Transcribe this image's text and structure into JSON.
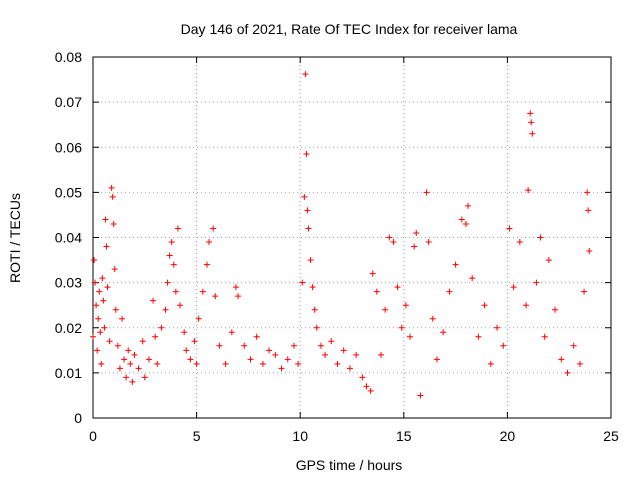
{
  "chart_data": {
    "type": "scatter",
    "title": "Day 146 of 2021, Rate Of TEC Index for receiver lama",
    "xlabel": "GPS time / hours",
    "ylabel": "ROTI / TECUs",
    "xlim": [
      0,
      25
    ],
    "ylim": [
      0,
      0.08
    ],
    "x_ticks": [
      0,
      5,
      10,
      15,
      20,
      25
    ],
    "y_ticks": [
      0,
      0.01,
      0.02,
      0.03,
      0.04,
      0.05,
      0.06,
      0.07,
      0.08
    ],
    "x_tick_labels": [
      "0",
      "5",
      "10",
      "15",
      "20",
      "25"
    ],
    "y_tick_labels": [
      "0",
      "0.01",
      "0.02",
      "0.03",
      "0.04",
      "0.05",
      "0.06",
      "0.07",
      "0.08"
    ],
    "grid": true,
    "marker": "+",
    "color": "#ff0000",
    "series": [
      {
        "name": "ROTI",
        "points": [
          [
            0.0,
            0.018
          ],
          [
            0.05,
            0.035
          ],
          [
            0.1,
            0.03
          ],
          [
            0.15,
            0.025
          ],
          [
            0.2,
            0.015
          ],
          [
            0.25,
            0.022
          ],
          [
            0.3,
            0.028
          ],
          [
            0.35,
            0.019
          ],
          [
            0.4,
            0.012
          ],
          [
            0.45,
            0.031
          ],
          [
            0.5,
            0.026
          ],
          [
            0.55,
            0.02
          ],
          [
            0.6,
            0.044
          ],
          [
            0.65,
            0.038
          ],
          [
            0.7,
            0.029
          ],
          [
            0.8,
            0.017
          ],
          [
            0.9,
            0.051
          ],
          [
            0.95,
            0.049
          ],
          [
            1.0,
            0.043
          ],
          [
            1.05,
            0.033
          ],
          [
            1.1,
            0.024
          ],
          [
            1.2,
            0.016
          ],
          [
            1.3,
            0.011
          ],
          [
            1.4,
            0.022
          ],
          [
            1.5,
            0.013
          ],
          [
            1.6,
            0.009
          ],
          [
            1.7,
            0.015
          ],
          [
            1.8,
            0.012
          ],
          [
            1.9,
            0.008
          ],
          [
            2.0,
            0.014
          ],
          [
            2.2,
            0.011
          ],
          [
            2.4,
            0.017
          ],
          [
            2.5,
            0.009
          ],
          [
            2.7,
            0.013
          ],
          [
            2.9,
            0.026
          ],
          [
            3.0,
            0.018
          ],
          [
            3.1,
            0.012
          ],
          [
            3.3,
            0.02
          ],
          [
            3.5,
            0.024
          ],
          [
            3.6,
            0.03
          ],
          [
            3.7,
            0.036
          ],
          [
            3.8,
            0.039
          ],
          [
            3.9,
            0.034
          ],
          [
            4.0,
            0.028
          ],
          [
            4.1,
            0.042
          ],
          [
            4.2,
            0.025
          ],
          [
            4.4,
            0.019
          ],
          [
            4.5,
            0.015
          ],
          [
            4.7,
            0.013
          ],
          [
            4.9,
            0.017
          ],
          [
            5.0,
            0.012
          ],
          [
            5.1,
            0.022
          ],
          [
            5.3,
            0.028
          ],
          [
            5.5,
            0.034
          ],
          [
            5.6,
            0.039
          ],
          [
            5.8,
            0.042
          ],
          [
            5.9,
            0.027
          ],
          [
            6.1,
            0.016
          ],
          [
            6.4,
            0.012
          ],
          [
            6.7,
            0.019
          ],
          [
            6.9,
            0.029
          ],
          [
            7.0,
            0.027
          ],
          [
            7.3,
            0.016
          ],
          [
            7.6,
            0.013
          ],
          [
            7.9,
            0.018
          ],
          [
            8.2,
            0.012
          ],
          [
            8.5,
            0.015
          ],
          [
            8.8,
            0.014
          ],
          [
            9.1,
            0.011
          ],
          [
            9.4,
            0.013
          ],
          [
            9.7,
            0.016
          ],
          [
            9.9,
            0.012
          ],
          [
            10.1,
            0.03
          ],
          [
            10.2,
            0.049
          ],
          [
            10.25,
            0.0762
          ],
          [
            10.3,
            0.0585
          ],
          [
            10.35,
            0.046
          ],
          [
            10.4,
            0.042
          ],
          [
            10.5,
            0.035
          ],
          [
            10.6,
            0.029
          ],
          [
            10.7,
            0.024
          ],
          [
            10.8,
            0.02
          ],
          [
            11.0,
            0.016
          ],
          [
            11.2,
            0.014
          ],
          [
            11.5,
            0.017
          ],
          [
            11.8,
            0.012
          ],
          [
            12.1,
            0.015
          ],
          [
            12.4,
            0.011
          ],
          [
            12.7,
            0.014
          ],
          [
            13.0,
            0.009
          ],
          [
            13.2,
            0.007
          ],
          [
            13.4,
            0.006
          ],
          [
            13.5,
            0.032
          ],
          [
            13.7,
            0.028
          ],
          [
            13.9,
            0.014
          ],
          [
            14.1,
            0.024
          ],
          [
            14.3,
            0.04
          ],
          [
            14.5,
            0.039
          ],
          [
            14.7,
            0.029
          ],
          [
            14.9,
            0.02
          ],
          [
            15.1,
            0.025
          ],
          [
            15.3,
            0.018
          ],
          [
            15.5,
            0.038
          ],
          [
            15.6,
            0.041
          ],
          [
            15.8,
            0.005
          ],
          [
            16.1,
            0.05
          ],
          [
            16.2,
            0.039
          ],
          [
            16.4,
            0.022
          ],
          [
            16.6,
            0.013
          ],
          [
            16.9,
            0.019
          ],
          [
            17.2,
            0.028
          ],
          [
            17.5,
            0.034
          ],
          [
            17.8,
            0.044
          ],
          [
            18.0,
            0.043
          ],
          [
            18.1,
            0.047
          ],
          [
            18.3,
            0.031
          ],
          [
            18.6,
            0.018
          ],
          [
            18.9,
            0.025
          ],
          [
            19.2,
            0.012
          ],
          [
            19.5,
            0.02
          ],
          [
            19.8,
            0.016
          ],
          [
            20.1,
            0.042
          ],
          [
            20.3,
            0.029
          ],
          [
            20.6,
            0.039
          ],
          [
            20.9,
            0.025
          ],
          [
            21.0,
            0.0505
          ],
          [
            21.1,
            0.0675
          ],
          [
            21.15,
            0.0655
          ],
          [
            21.2,
            0.063
          ],
          [
            21.4,
            0.03
          ],
          [
            21.6,
            0.04
          ],
          [
            21.8,
            0.018
          ],
          [
            22.0,
            0.035
          ],
          [
            22.3,
            0.024
          ],
          [
            22.6,
            0.013
          ],
          [
            22.9,
            0.01
          ],
          [
            23.2,
            0.016
          ],
          [
            23.5,
            0.012
          ],
          [
            23.7,
            0.028
          ],
          [
            23.85,
            0.05
          ],
          [
            23.9,
            0.046
          ],
          [
            23.95,
            0.037
          ]
        ]
      }
    ]
  }
}
